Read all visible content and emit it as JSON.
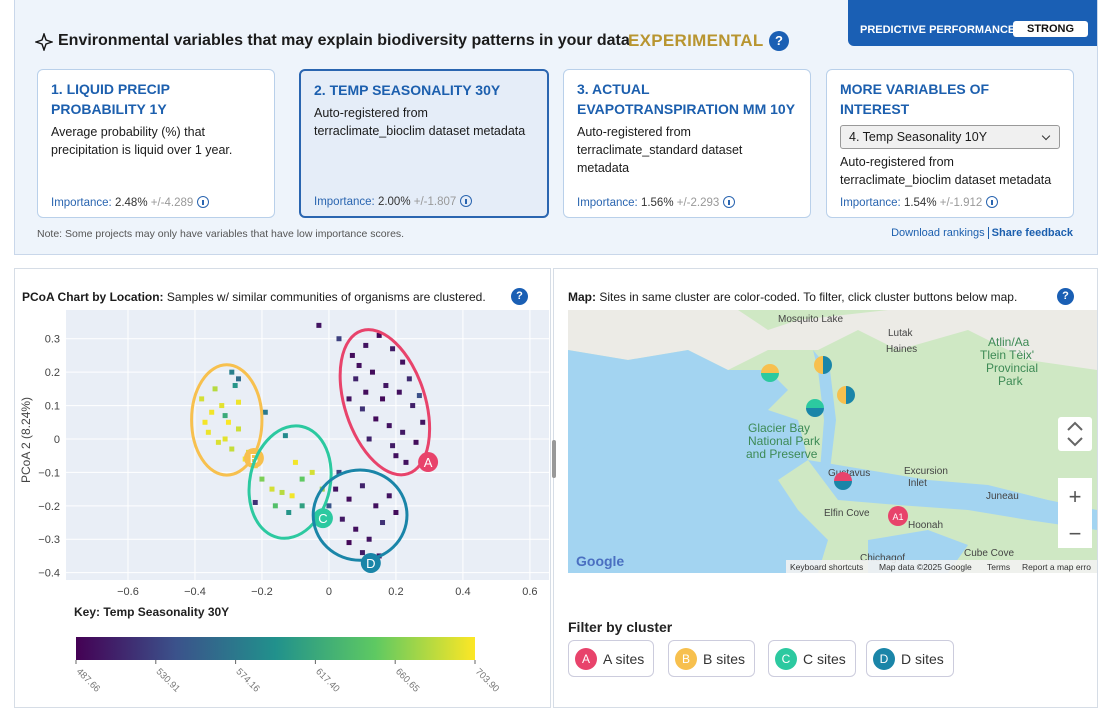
{
  "header": {
    "title": "Environmental variables that may explain biodiversity patterns in your data",
    "badge": "EXPERIMENTAL",
    "help": "?"
  },
  "performance": {
    "label": "PREDICTIVE PERFORMANCE",
    "value": "STRONG"
  },
  "cards": [
    {
      "title": "1. LIQUID PRECIP PROBABILITY 1Y",
      "description": "Average probability (%) that precipitation is liquid over 1 year.",
      "importance_label": "Importance:",
      "importance": "2.48%",
      "error": "+/-4.289"
    },
    {
      "title": "2. TEMP SEASONALITY 30Y",
      "description": "Auto-registered from terraclimate_bioclim dataset metadata",
      "importance_label": "Importance:",
      "importance": "2.00%",
      "error": "+/-1.807"
    },
    {
      "title": "3. ACTUAL EVAPOTRANSPIRATION MM 10Y",
      "description": "Auto-registered from terraclimate_standard dataset metadata",
      "importance_label": "Importance:",
      "importance": "1.56%",
      "error": "+/-2.293"
    },
    {
      "title": "MORE VARIABLES OF INTEREST",
      "select": "4. Temp Seasonality 10Y",
      "description": "Auto-registered from terraclimate_bioclim dataset metadata",
      "importance_label": "Importance:",
      "importance": "1.54%",
      "error": "+/-1.912"
    }
  ],
  "note": "Note: Some projects may only have variables that have low importance scores.",
  "links": [
    "Download rankings",
    "Share feedback"
  ],
  "chart_data": {
    "type": "scatter",
    "title_bold": "PCoA Chart by Location:",
    "title": "Samples w/ similar communities of organisms are clustered.",
    "help": "?",
    "y_label": "PCoA 2 (8.24%)",
    "xlim": [
      -0.785,
      0.657
    ],
    "ylim": [
      -0.422,
      0.386
    ],
    "xticks": [
      {
        "value": -0.6,
        "label": "−0.6"
      },
      {
        "value": -0.4,
        "label": "−0.4"
      },
      {
        "value": -0.2,
        "label": "−0.2"
      },
      0,
      0.2,
      0.4,
      0.6
    ],
    "yticks": [
      0.3,
      0.2,
      0.1,
      0,
      {
        "value": -0.1,
        "label": "−0.1"
      },
      {
        "value": -0.2,
        "label": "−0.2"
      },
      {
        "value": -0.3,
        "label": "−0.3"
      },
      {
        "value": -0.4,
        "label": "−0.4"
      }
    ],
    "grid": true,
    "x": [
      0.07,
      0.11,
      0.15,
      0.19,
      0.22,
      0.08,
      0.13,
      0.17,
      0.21,
      0.25,
      0.06,
      0.1,
      0.14,
      0.18,
      0.22,
      0.26,
      0.12,
      0.2,
      0.28,
      0.09,
      0.24,
      0.16,
      -0.03,
      0.03,
      0.19,
      0.23,
      0.11,
      0.27,
      -0.38,
      -0.35,
      -0.32,
      -0.36,
      -0.3,
      -0.33,
      -0.27,
      -0.29,
      -0.25,
      -0.22,
      -0.34,
      -0.27,
      -0.24,
      -0.31,
      -0.37,
      -0.29,
      -0.28,
      -0.27,
      -0.19,
      -0.31,
      -0.13,
      -0.2,
      -0.17,
      -0.14,
      -0.11,
      -0.08,
      -0.05,
      -0.16,
      -0.12,
      -0.08,
      -0.04,
      -0.02,
      -0.22,
      -0.1,
      0.02,
      0.06,
      0.1,
      0.14,
      0.04,
      0.08,
      0.12,
      0.16,
      0.2,
      0.06,
      0.1,
      0.03,
      0.18,
      0.15,
      0.0
    ],
    "y": [
      0.25,
      0.28,
      0.31,
      0.27,
      0.23,
      0.18,
      0.2,
      0.16,
      0.14,
      0.1,
      0.12,
      0.09,
      0.06,
      0.04,
      0.02,
      -0.01,
      0.0,
      -0.05,
      0.05,
      0.22,
      0.18,
      0.12,
      0.34,
      0.3,
      -0.02,
      -0.07,
      0.14,
      0.13,
      0.12,
      0.08,
      0.1,
      0.02,
      0.05,
      -0.01,
      0.03,
      -0.03,
      -0.06,
      -0.08,
      0.15,
      0.11,
      -0.04,
      0.0,
      0.05,
      0.2,
      0.16,
      0.18,
      0.08,
      0.07,
      0.01,
      -0.12,
      -0.15,
      -0.16,
      -0.17,
      -0.12,
      -0.1,
      -0.2,
      -0.22,
      -0.2,
      -0.25,
      -0.15,
      -0.19,
      -0.07,
      -0.15,
      -0.18,
      -0.14,
      -0.2,
      -0.24,
      -0.27,
      -0.3,
      -0.25,
      -0.22,
      -0.31,
      -0.34,
      -0.1,
      -0.17,
      -0.35,
      -0.2
    ],
    "values": [
      495,
      500,
      492,
      505,
      498,
      510,
      495,
      502,
      497,
      508,
      500,
      520,
      494,
      499,
      503,
      496,
      510,
      498,
      501,
      497,
      515,
      493,
      500,
      530,
      505,
      499,
      496,
      540,
      690,
      700,
      695,
      698,
      703,
      692,
      688,
      685,
      700,
      696,
      680,
      699,
      690,
      695,
      701,
      580,
      600,
      565,
      575,
      620,
      590,
      660,
      690,
      680,
      700,
      650,
      690,
      640,
      600,
      610,
      620,
      670,
      520,
      700,
      500,
      495,
      510,
      498,
      503,
      497,
      500,
      520,
      495,
      492,
      505,
      530,
      499,
      501,
      545
    ],
    "colorscale": [
      "#440154",
      "#3b528b",
      "#21918c",
      "#5ec962",
      "#fde725"
    ],
    "clusters": [
      {
        "label": "A",
        "color": "#e8436b",
        "cx": 0.167,
        "cy": 0.11,
        "rx": 0.12,
        "ry": 0.225,
        "angle": -18,
        "lx": 0.296,
        "ly": -0.069
      },
      {
        "label": "B",
        "color": "#f7c04e",
        "cx": -0.305,
        "cy": 0.057,
        "rx": 0.105,
        "ry": 0.165,
        "angle": 0,
        "lx": -0.224,
        "ly": -0.057
      },
      {
        "label": "C",
        "color": "#2cc9a0",
        "cx": -0.116,
        "cy": -0.129,
        "rx": 0.12,
        "ry": 0.17,
        "angle": 12,
        "lx": -0.018,
        "ly": -0.237
      },
      {
        "label": "D",
        "color": "#1a85a8",
        "cx": 0.093,
        "cy": -0.228,
        "rx": 0.14,
        "ry": 0.135,
        "angle": 0,
        "lx": 0.125,
        "ly": -0.371
      }
    ],
    "colorbar": {
      "title": "Key: Temp Seasonality 30Y",
      "lim": [
        487.66,
        703.9
      ],
      "ticks": [
        487.66,
        530.91,
        574.16,
        {
          "value": 617.4,
          "label": "617.40"
        },
        660.65,
        {
          "value": 703.9,
          "label": "703.90"
        }
      ]
    }
  },
  "map": {
    "title_bold": "Map:",
    "title": "Sites in same cluster are color-coded. To filter, click cluster buttons below map.",
    "help": "?",
    "places": [
      "Mosquito Lake",
      "Lutak",
      "Haines",
      "Atlin/Aa",
      "Tlein Tèix'",
      "Provincial",
      "Park",
      "Glacier Bay",
      "National Park",
      "and Preserve",
      "Gustavus",
      "Excursion",
      "Inlet",
      "Juneau",
      "Elfin Cove",
      "Hoonah",
      "Chichagof",
      "Cube Cove"
    ],
    "marker": "A1",
    "zoom_in": "+",
    "zoom_out": "−",
    "logo": "Google",
    "footer": [
      "Keyboard shortcuts",
      "Map data ©2025 Google",
      "Terms",
      "Report a map erro"
    ]
  },
  "filter": {
    "title": "Filter by cluster",
    "buttons": [
      "A sites",
      "B sites",
      "C sites",
      "D sites"
    ]
  }
}
